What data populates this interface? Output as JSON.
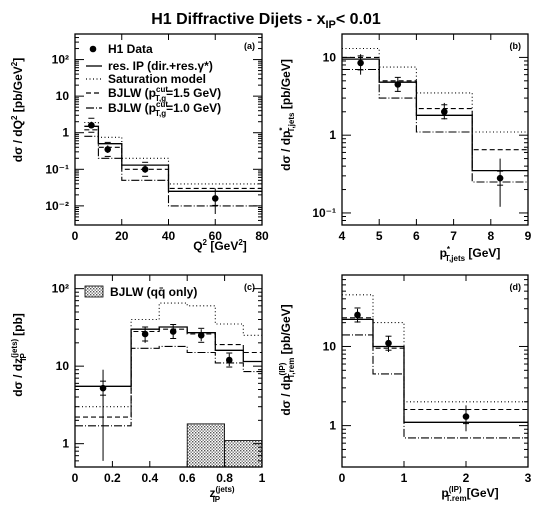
{
  "header": {
    "title_main": "H1 Diffractive Dijets  -  x",
    "title_sub": "IP",
    "title_rest": "< 0.01"
  },
  "legend": {
    "data": "H1 Data",
    "resip": "res. IP (dir.+res.γ*)",
    "sat": "Saturation model",
    "bjlw15": "BJLW (p",
    "bjlw15_sup": "cut",
    "bjlw15_sub": "T,g",
    "bjlw15_rest": "=1.5 GeV)",
    "bjlw10": "BJLW (p",
    "bjlw10_sup": "cut",
    "bjlw10_sub": "T,g",
    "bjlw10_rest": "=1.0 GeV)",
    "qq": "BJLW (qq̄ only)"
  },
  "chart_data": [
    {
      "type": "line",
      "panel_label": "(a)",
      "xlabel": "Q² [GeV²]",
      "ylabel": "dσ / dQ² [pb/GeV²]",
      "xlim": [
        0,
        80
      ],
      "yscale": "log",
      "ylim": [
        0.003,
        500
      ],
      "xticks": [
        0,
        20,
        40,
        60,
        80
      ],
      "yticks": [
        {
          "v": 100,
          "t": "10²"
        },
        {
          "v": 10,
          "t": "10"
        },
        {
          "v": 1,
          "t": "1"
        },
        {
          "v": 0.1,
          "t": "10⁻¹"
        },
        {
          "v": 0.01,
          "t": "10⁻²"
        }
      ],
      "bin_edges": [
        4,
        10,
        20,
        40,
        80
      ],
      "series": [
        {
          "name": "res. IP (dir.+res.γ*)",
          "style": "solid",
          "values": [
            1.5,
            0.5,
            0.13,
            0.025
          ]
        },
        {
          "name": "Saturation model",
          "style": "dotted",
          "values": [
            1.9,
            0.75,
            0.2,
            0.04
          ]
        },
        {
          "name": "BJLW (pT,g cut=1.5 GeV)",
          "style": "dashed",
          "values": [
            1.2,
            0.4,
            0.1,
            0.03
          ]
        },
        {
          "name": "BJLW (pT,g cut=1.0 GeV)",
          "style": "dashdot",
          "values": [
            0.8,
            0.2,
            0.05,
            0.01
          ]
        }
      ],
      "points": [
        {
          "x": 7,
          "y": 1.6,
          "lo": 1.3,
          "hi": 2.0
        },
        {
          "x": 14,
          "y": 0.35,
          "lo": 0.28,
          "hi": 0.45
        },
        {
          "x": 30,
          "y": 0.1,
          "lo": 0.08,
          "hi": 0.13
        },
        {
          "x": 60,
          "y": 0.016,
          "lo": 0.006,
          "hi": 0.03
        }
      ]
    },
    {
      "type": "line",
      "panel_label": "(b)",
      "xlabel": "p*T,jets [GeV]",
      "ylabel": "dσ / dp*T,jets [pb/GeV]",
      "xlim": [
        4,
        9
      ],
      "yscale": "log",
      "ylim": [
        0.07,
        20
      ],
      "xticks": [
        4,
        5,
        6,
        7,
        8,
        9
      ],
      "yticks": [
        {
          "v": 10,
          "t": "10"
        },
        {
          "v": 1,
          "t": "1"
        },
        {
          "v": 0.1,
          "t": "10⁻¹"
        }
      ],
      "bin_edges": [
        4,
        5,
        6,
        7.5,
        9
      ],
      "series": [
        {
          "name": "res. IP (dir.+res.γ*)",
          "style": "solid",
          "values": [
            9.5,
            4.8,
            1.8,
            0.35
          ]
        },
        {
          "name": "Saturation model",
          "style": "dotted",
          "values": [
            13.0,
            7.5,
            3.5,
            1.1
          ]
        },
        {
          "name": "BJLW (pT,g cut=1.5 GeV)",
          "style": "dashed",
          "values": [
            10.0,
            5.0,
            2.2,
            0.65
          ]
        },
        {
          "name": "BJLW (pT,g cut=1.0 GeV)",
          "style": "dashdot",
          "values": [
            7.0,
            3.0,
            1.1,
            0.25
          ]
        }
      ],
      "points": [
        {
          "x": 4.5,
          "y": 8.5,
          "lo": 6.0,
          "hi": 11.0
        },
        {
          "x": 5.5,
          "y": 4.5,
          "lo": 3.6,
          "hi": 5.6
        },
        {
          "x": 6.75,
          "y": 2.0,
          "lo": 1.6,
          "hi": 2.6
        },
        {
          "x": 8.25,
          "y": 0.28,
          "lo": 0.12,
          "hi": 0.5
        }
      ]
    },
    {
      "type": "line",
      "panel_label": "(c)",
      "xlabel": "z(jets) IP",
      "ylabel": "dσ / dz(jets) IP [pb]",
      "xlim": [
        0,
        1
      ],
      "yscale": "log",
      "ylim": [
        0.5,
        150
      ],
      "xticks": [
        0,
        0.2,
        0.4,
        0.6,
        0.8,
        1
      ],
      "yticks": [
        {
          "v": 100,
          "t": "10²"
        },
        {
          "v": 10,
          "t": "10"
        },
        {
          "v": 1,
          "t": "1"
        }
      ],
      "bin_edges": [
        0,
        0.3,
        0.45,
        0.6,
        0.75,
        0.9,
        1.0
      ],
      "series": [
        {
          "name": "res. IP (dir.+res.γ*)",
          "style": "solid",
          "values": [
            5.5,
            30,
            32,
            27,
            16,
            11.5
          ]
        },
        {
          "name": "Saturation model",
          "style": "dotted",
          "values": [
            3.0,
            40,
            65,
            60,
            35,
            25
          ]
        },
        {
          "name": "BJLW (pT,g cut=1.5 GeV)",
          "style": "dashed",
          "values": [
            2.2,
            28,
            30,
            26,
            19,
            15
          ]
        },
        {
          "name": "BJLW (pT,g cut=1.0 GeV)",
          "style": "dashdot",
          "values": [
            1.7,
            17,
            18,
            15,
            11,
            8.5
          ]
        },
        {
          "name": "BJLW (qq̄ only)",
          "style": "hatched",
          "edges": [
            0.6,
            0.8,
            1.0
          ],
          "values": [
            1.8,
            1.1
          ]
        }
      ],
      "points": [
        {
          "x": 0.15,
          "y": 5.2,
          "lo": 0.6,
          "hi": 9.0
        },
        {
          "x": 0.375,
          "y": 26,
          "lo": 20,
          "hi": 32
        },
        {
          "x": 0.525,
          "y": 28,
          "lo": 23,
          "hi": 34
        },
        {
          "x": 0.675,
          "y": 25,
          "lo": 21,
          "hi": 30
        },
        {
          "x": 0.825,
          "y": 12,
          "lo": 10,
          "hi": 14.5
        }
      ]
    },
    {
      "type": "line",
      "panel_label": "(d)",
      "xlabel": "p(IP) T,rem [GeV]",
      "ylabel": "dσ / dp(IP) T,rem [pb/GeV]",
      "xlim": [
        0,
        3
      ],
      "yscale": "log",
      "ylim": [
        0.3,
        80
      ],
      "xticks": [
        0,
        1,
        2,
        3
      ],
      "yticks": [
        {
          "v": 10,
          "t": "10"
        },
        {
          "v": 1,
          "t": "1"
        }
      ],
      "bin_edges": [
        0,
        0.5,
        1,
        3
      ],
      "series": [
        {
          "name": "res. IP (dir.+res.γ*)",
          "style": "solid",
          "values": [
            22,
            10,
            1.1
          ]
        },
        {
          "name": "Saturation model",
          "style": "dotted",
          "values": [
            45,
            20,
            2.0
          ]
        },
        {
          "name": "BJLW (pT,g cut=1.5 GeV)",
          "style": "dashed",
          "values": [
            23,
            9.5,
            1.6
          ]
        },
        {
          "name": "BJLW (pT,g cut=1.0 GeV)",
          "style": "dashdot",
          "values": [
            14,
            4.5,
            0.7
          ]
        }
      ],
      "points": [
        {
          "x": 0.25,
          "y": 25,
          "lo": 20,
          "hi": 30
        },
        {
          "x": 0.75,
          "y": 11,
          "lo": 8.5,
          "hi": 13.5
        },
        {
          "x": 2.0,
          "y": 1.3,
          "lo": 0.85,
          "hi": 1.8
        }
      ]
    }
  ]
}
